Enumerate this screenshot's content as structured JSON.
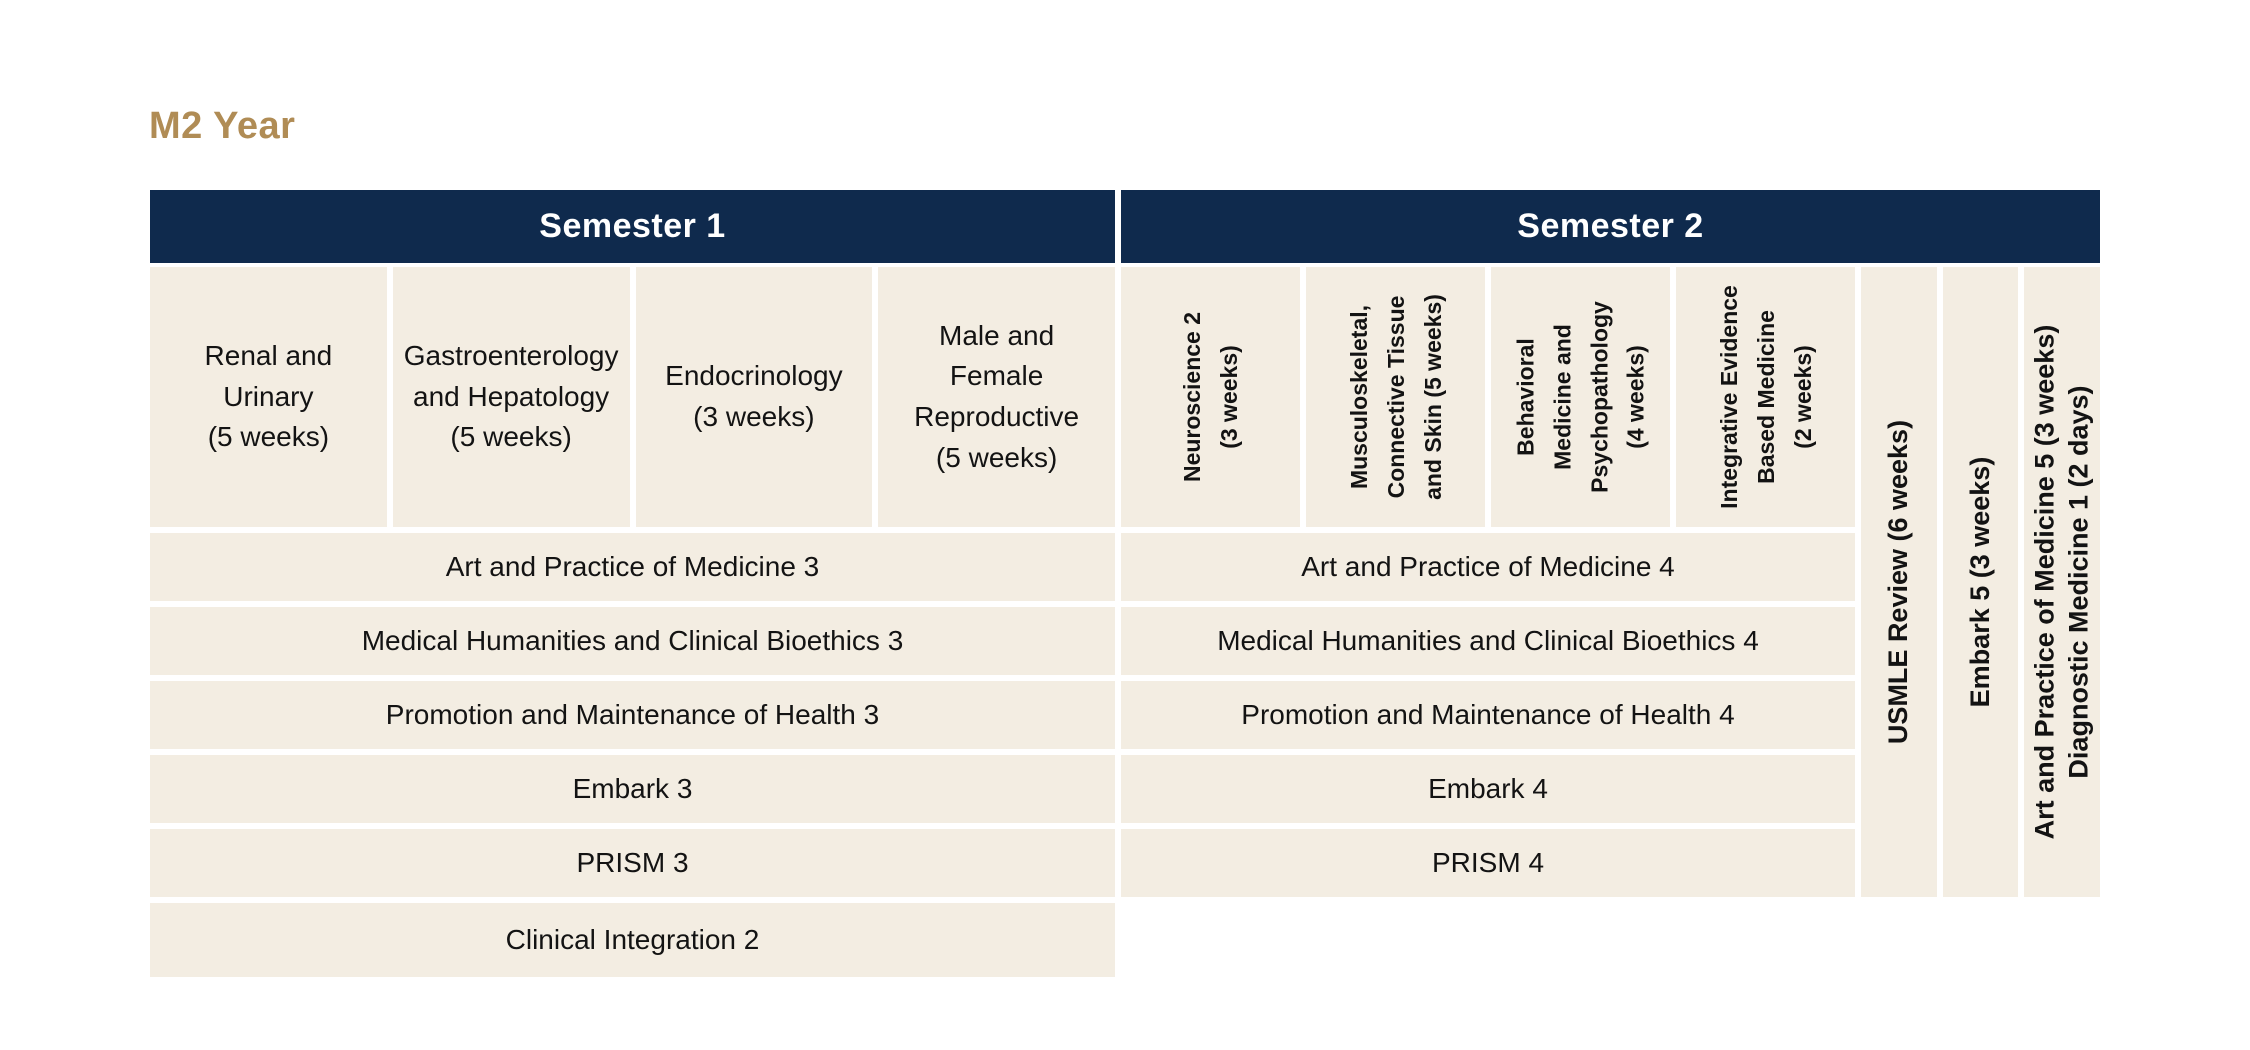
{
  "title": "M2 Year",
  "colors": {
    "navy": "#0f2a4d",
    "beige": "#f3ede2",
    "gold": "#b08c55",
    "text": "#131313"
  },
  "semester1": {
    "header": "Semester 1",
    "blocks": [
      "Renal and\nUrinary\n(5 weeks)",
      "Gastroenterology\nand Hepatology\n(5 weeks)",
      "Endocrinology\n(3 weeks)",
      "Male and\nFemale\nReproductive\n(5 weeks)"
    ],
    "rows": [
      "Art and Practice of Medicine 3",
      "Medical Humanities and Clinical Bioethics 3",
      "Promotion and Maintenance of Health 3",
      "Embark 3",
      "PRISM 3",
      "Clinical Integration 2"
    ]
  },
  "semester2": {
    "header": "Semester 2",
    "blocks": [
      "Neuroscience 2\n(3 weeks)",
      "Musculoskeletal,\nConnective Tissue\nand Skin (5 weeks)",
      "Behavioral\nMedicine and\nPsychopathology\n(4 weeks)",
      "Integrative Evidence\nBased Medicine\n(2 weeks)"
    ],
    "rows": [
      "Art and Practice of Medicine 4",
      "Medical Humanities and Clinical Bioethics 4",
      "Promotion and Maintenance of Health 4",
      "Embark 4",
      "PRISM 4"
    ],
    "side_columns": [
      "USMLE Review (6 weeks)",
      "Embark 5 (3 weeks)",
      "Art and Practice of Medicine 5 (3 weeks)\nDiagnostic Medicine 1 (2 days)"
    ]
  }
}
